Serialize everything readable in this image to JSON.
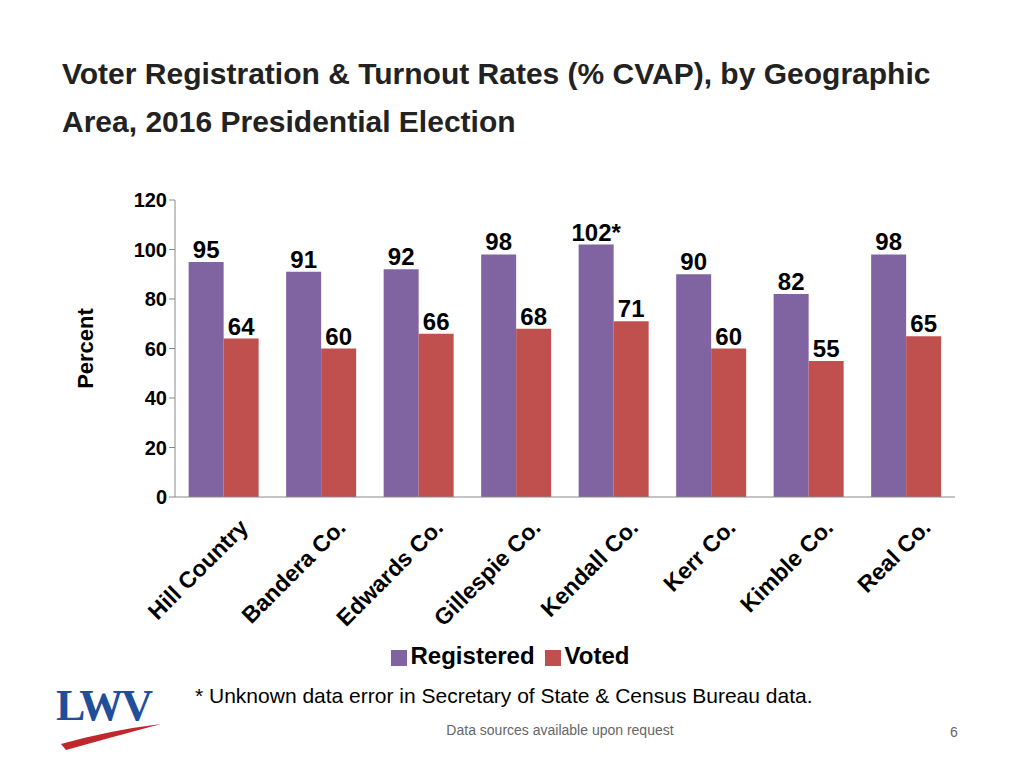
{
  "chart_data": {
    "type": "bar",
    "title": "Voter Registration & Turnout Rates (% CVAP), by Geographic Area, 2016 Presidential Election",
    "y_label": "Percent",
    "categories": [
      "Hill Country",
      "Bandera Co.",
      "Edwards Co.",
      "Gillespie Co.",
      "Kendall Co.",
      "Kerr Co.",
      "Kimble Co.",
      "Real Co."
    ],
    "series": [
      {
        "name": "Registered",
        "color": "#8064a2",
        "values": [
          95,
          91,
          92,
          98,
          102,
          90,
          82,
          98
        ],
        "value_labels": [
          "95",
          "91",
          "92",
          "98",
          "102*",
          "90",
          "82",
          "98"
        ]
      },
      {
        "name": "Voted",
        "color": "#c0504d",
        "values": [
          64,
          60,
          66,
          68,
          71,
          60,
          55,
          65
        ]
      }
    ],
    "ylim": [
      0,
      120
    ],
    "yticks": [
      0,
      20,
      40,
      60,
      80,
      100,
      120
    ],
    "grid": false,
    "legend": "bottom",
    "data_labels": true,
    "annotations": [
      "* Unknown data error in Secretary of State & Census Bureau data.",
      "Data sources available upon request",
      "6",
      "LWV"
    ]
  }
}
